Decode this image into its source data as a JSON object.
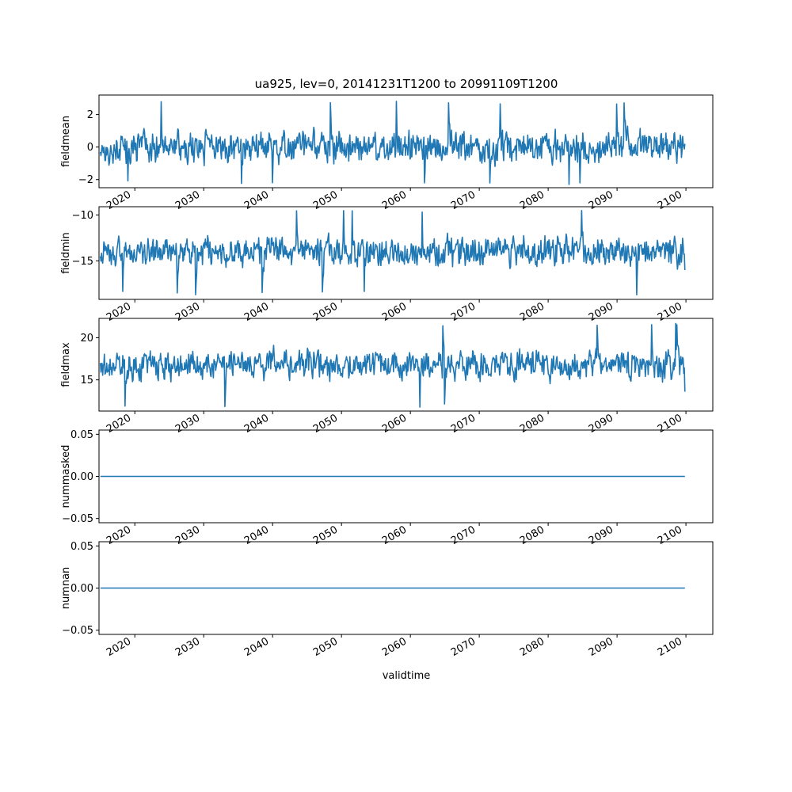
{
  "figure": {
    "title": "ua925, lev=0, 20141231T1200 to 20991109T1200",
    "xlabel": "validtime",
    "line_color": "#1f77b4"
  },
  "chart_data": [
    {
      "type": "line",
      "ylabel": "fieldmean",
      "xlim": [
        2014.8,
        2103.9
      ],
      "ylim": [
        -2.5,
        3.2
      ],
      "yticks": [
        2,
        0,
        -2
      ],
      "ytick_labels": [
        "2",
        "0",
        "−2"
      ],
      "xticks": [
        2020,
        2030,
        2040,
        2050,
        2060,
        2070,
        2080,
        2090,
        2100
      ],
      "xtick_labels": [
        "2020",
        "2030",
        "2040",
        "2050",
        "2060",
        "2070",
        "2080",
        "2090",
        "2100"
      ],
      "x_start": 2015.0,
      "x_end": 2099.85,
      "base": 0.0,
      "amplitude": 0.85,
      "spike_max": 2.9,
      "spike_min": -2.3,
      "first": -0.3,
      "last": 0.2
    },
    {
      "type": "line",
      "ylabel": "fieldmin",
      "xlim": [
        2014.8,
        2103.9
      ],
      "ylim": [
        -19.2,
        -9.1
      ],
      "yticks": [
        -10,
        -15
      ],
      "ytick_labels": [
        "−10",
        "−15"
      ],
      "xticks": [
        2020,
        2030,
        2040,
        2050,
        2060,
        2070,
        2080,
        2090,
        2100
      ],
      "xtick_labels": [
        "2020",
        "2030",
        "2040",
        "2050",
        "2060",
        "2070",
        "2080",
        "2090",
        "2100"
      ],
      "x_start": 2015.0,
      "x_end": 2099.85,
      "base": -14.0,
      "amplitude": 1.4,
      "spike_max": -9.5,
      "spike_min": -18.7,
      "first": -14.5,
      "last": -16.0
    },
    {
      "type": "line",
      "ylabel": "fieldmax",
      "xlim": [
        2014.8,
        2103.9
      ],
      "ylim": [
        11.3,
        22.3
      ],
      "yticks": [
        20,
        15
      ],
      "ytick_labels": [
        "20",
        "15"
      ],
      "xticks": [
        2020,
        2030,
        2040,
        2050,
        2060,
        2070,
        2080,
        2090,
        2100
      ],
      "xtick_labels": [
        "2020",
        "2030",
        "2040",
        "2050",
        "2060",
        "2070",
        "2080",
        "2090",
        "2100"
      ],
      "x_start": 2015.0,
      "x_end": 2099.85,
      "base": 16.8,
      "amplitude": 1.5,
      "spike_max": 21.8,
      "spike_min": 11.7,
      "first": 17.0,
      "last": 13.6
    },
    {
      "type": "line",
      "ylabel": "nummasked",
      "xlim": [
        2014.8,
        2103.9
      ],
      "ylim": [
        -0.055,
        0.055
      ],
      "yticks": [
        0.05,
        0.0,
        -0.05
      ],
      "ytick_labels": [
        "0.05",
        "0.00",
        "−0.05"
      ],
      "xticks": [
        2020,
        2030,
        2040,
        2050,
        2060,
        2070,
        2080,
        2090,
        2100
      ],
      "xtick_labels": [
        "2020",
        "2030",
        "2040",
        "2050",
        "2060",
        "2070",
        "2080",
        "2090",
        "2100"
      ],
      "x": [
        2015.0,
        2099.85
      ],
      "y": [
        0.0,
        0.0
      ]
    },
    {
      "type": "line",
      "ylabel": "numnan",
      "xlim": [
        2014.8,
        2103.9
      ],
      "ylim": [
        -0.055,
        0.055
      ],
      "yticks": [
        0.05,
        0.0,
        -0.05
      ],
      "ytick_labels": [
        "0.05",
        "0.00",
        "−0.05"
      ],
      "xticks": [
        2020,
        2030,
        2040,
        2050,
        2060,
        2070,
        2080,
        2090,
        2100
      ],
      "xtick_labels": [
        "2020",
        "2030",
        "2040",
        "2050",
        "2060",
        "2070",
        "2080",
        "2090",
        "2100"
      ],
      "x": [
        2015.0,
        2099.85
      ],
      "y": [
        0.0,
        0.0
      ]
    }
  ]
}
